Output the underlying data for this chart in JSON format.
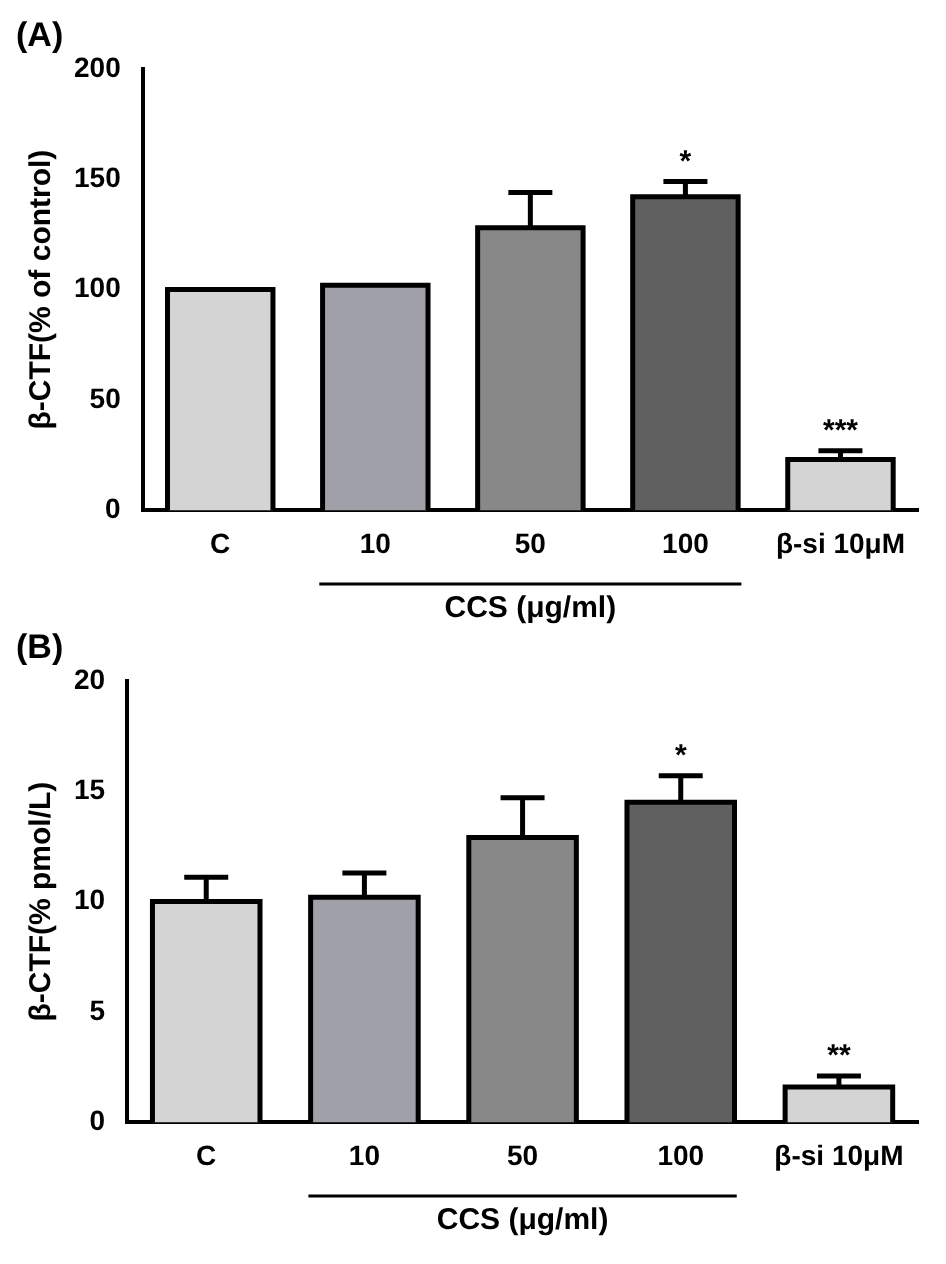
{
  "chart_data": [
    {
      "type": "bar",
      "title": "(A)",
      "ylabel": "β-CTF(% of control)",
      "categories": [
        "C",
        "10",
        "50",
        "100",
        "β-si 10μM"
      ],
      "values": [
        100,
        102,
        128,
        142,
        23
      ],
      "errors": [
        null,
        null,
        16,
        7,
        4
      ],
      "colors": [
        "#d4d4d4",
        "#a0a0a8",
        "#888888",
        "#606060",
        "#d4d4d4"
      ],
      "ylim": [
        0,
        200
      ],
      "yticks": [
        0,
        50,
        100,
        150,
        200
      ],
      "grid": false,
      "legend": false,
      "annotations": [
        {
          "text": "*",
          "x": "100",
          "y": 149
        },
        {
          "text": "***",
          "x": "β-si 10μM",
          "y": 27
        },
        "CCS (μg/ml)"
      ]
    },
    {
      "type": "bar",
      "title": "(B)",
      "ylabel": "β-CTF(% pmol/L)",
      "categories": [
        "C",
        "10",
        "50",
        "100",
        "β-si 10μM"
      ],
      "values": [
        10.0,
        10.2,
        12.9,
        14.5,
        1.6
      ],
      "errors": [
        1.1,
        1.1,
        1.8,
        1.2,
        0.5
      ],
      "colors": [
        "#d4d4d4",
        "#a0a0a8",
        "#888888",
        "#606060",
        "#d4d4d4"
      ],
      "ylim": [
        0,
        20
      ],
      "yticks": [
        0,
        5,
        10,
        15,
        20
      ],
      "grid": false,
      "legend": false,
      "annotations": [
        {
          "text": "*",
          "x": "100",
          "y": 15.7
        },
        {
          "text": "**",
          "x": "β-si 10μM",
          "y": 2.1
        },
        "CCS (μg/ml)"
      ]
    }
  ]
}
